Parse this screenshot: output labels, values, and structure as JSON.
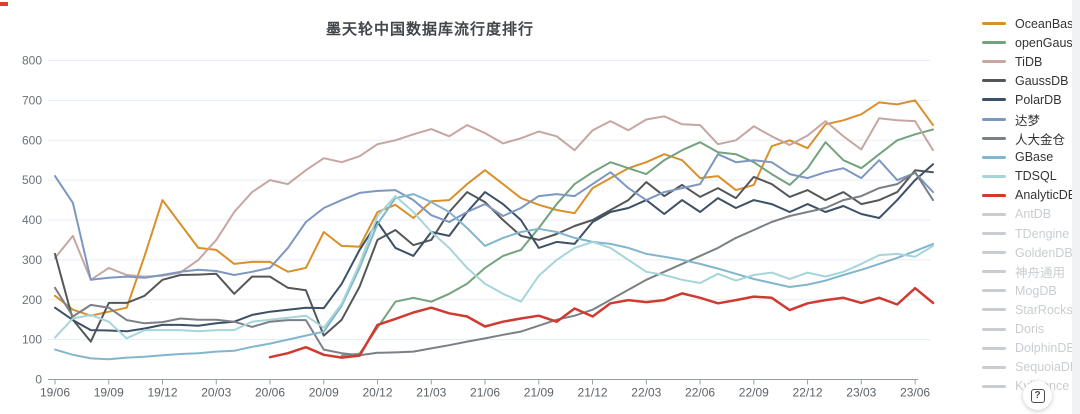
{
  "page": {
    "title": "墨天轮中国数据库流行度排行"
  },
  "help_button": {
    "glyph": "?"
  },
  "legend": {
    "inactive_items": [
      "AntDB",
      "TDengine",
      "GoldenDB",
      "神舟通用",
      "MogDB",
      "StarRocks",
      "Doris",
      "DolphinDB",
      "SequoiaDB",
      "Kyligence"
    ],
    "inactive_color": "#c9cdd2"
  },
  "chart_data": {
    "type": "line",
    "title": "墨天轮中国数据库流行度排行",
    "x_start": "2019-06",
    "x_step_months": 1,
    "x_tick_labels": [
      "19/06",
      "19/09",
      "19/12",
      "20/03",
      "20/06",
      "20/09",
      "20/12",
      "21/03",
      "21/06",
      "21/09",
      "21/12",
      "22/03",
      "22/06",
      "22/09",
      "22/12",
      "23/03",
      "23/06"
    ],
    "months_per_tick": 3,
    "ylim": [
      0,
      800
    ],
    "y_tick_step": 100,
    "grid": true,
    "legend_position": "right",
    "series": [
      {
        "name": "OceanBase",
        "color": "#d9902a",
        "width": 2,
        "values": [
          210,
          175,
          160,
          170,
          180,
          310,
          450,
          390,
          330,
          325,
          290,
          295,
          295,
          270,
          280,
          370,
          335,
          333,
          420,
          438,
          405,
          447,
          450,
          490,
          525,
          490,
          455,
          438,
          425,
          417,
          480,
          505,
          530,
          545,
          565,
          550,
          505,
          510,
          475,
          488,
          585,
          600,
          580,
          640,
          650,
          665,
          695,
          690,
          700,
          638
        ]
      },
      {
        "name": "openGauss",
        "color": "#73a37d",
        "width": 2,
        "values": [
          null,
          null,
          null,
          null,
          null,
          null,
          null,
          null,
          null,
          null,
          null,
          null,
          null,
          null,
          null,
          null,
          60,
          65,
          130,
          195,
          205,
          195,
          215,
          240,
          280,
          310,
          325,
          380,
          440,
          490,
          520,
          545,
          530,
          515,
          550,
          575,
          595,
          570,
          565,
          545,
          515,
          488,
          530,
          595,
          550,
          530,
          565,
          600,
          615,
          627
        ]
      },
      {
        "name": "TiDB",
        "color": "#c7a6a2",
        "width": 2,
        "values": [
          305,
          360,
          250,
          280,
          262,
          258,
          260,
          268,
          300,
          350,
          420,
          470,
          500,
          490,
          525,
          555,
          545,
          560,
          590,
          600,
          615,
          628,
          610,
          638,
          618,
          592,
          605,
          622,
          610,
          575,
          625,
          648,
          625,
          652,
          660,
          640,
          638,
          590,
          600,
          635,
          610,
          588,
          612,
          648,
          610,
          577,
          655,
          650,
          648,
          575
        ]
      },
      {
        "name": "GaussDB",
        "color": "#54575a",
        "width": 2,
        "values": [
          315,
          150,
          95,
          192,
          192,
          210,
          250,
          262,
          263,
          265,
          215,
          258,
          258,
          230,
          224,
          110,
          150,
          233,
          350,
          375,
          337,
          350,
          420,
          470,
          445,
          400,
          360,
          350,
          365,
          385,
          400,
          425,
          450,
          495,
          460,
          488,
          458,
          480,
          455,
          508,
          490,
          458,
          475,
          450,
          470,
          440,
          450,
          470,
          525,
          520
        ]
      },
      {
        "name": "PolarDB",
        "color": "#3c5067",
        "width": 2,
        "values": [
          180,
          149,
          124,
          123,
          121,
          128,
          137,
          137,
          135,
          141,
          145,
          162,
          170,
          175,
          180,
          179,
          240,
          325,
          395,
          330,
          310,
          370,
          360,
          420,
          470,
          440,
          400,
          330,
          345,
          340,
          395,
          420,
          430,
          450,
          415,
          450,
          420,
          455,
          430,
          450,
          440,
          420,
          440,
          420,
          435,
          415,
          405,
          450,
          500,
          540
        ]
      },
      {
        "name": "达梦",
        "color": "#7d97c0",
        "width": 2,
        "values": [
          510,
          443,
          250,
          255,
          258,
          255,
          262,
          270,
          275,
          272,
          262,
          270,
          280,
          330,
          395,
          430,
          450,
          468,
          473,
          475,
          450,
          412,
          395,
          420,
          440,
          410,
          430,
          460,
          465,
          460,
          490,
          520,
          480,
          450,
          470,
          480,
          490,
          565,
          545,
          550,
          545,
          515,
          505,
          520,
          530,
          505,
          550,
          500,
          518,
          470
        ]
      },
      {
        "name": "人大金仓",
        "color": "#7b8087",
        "width": 2,
        "values": [
          230,
          158,
          187,
          180,
          149,
          141,
          144,
          153,
          150,
          150,
          145,
          132,
          145,
          149,
          149,
          75,
          66,
          61,
          67,
          68,
          70,
          78,
          86,
          95,
          103,
          112,
          120,
          135,
          150,
          160,
          175,
          200,
          225,
          250,
          270,
          290,
          310,
          330,
          355,
          375,
          395,
          410,
          420,
          430,
          450,
          460,
          480,
          490,
          520,
          450
        ]
      },
      {
        "name": "GBase",
        "color": "#82b6cd",
        "width": 2,
        "values": [
          75,
          62,
          53,
          51,
          55,
          57,
          61,
          64,
          66,
          70,
          72,
          82,
          90,
          100,
          110,
          120,
          185,
          280,
          390,
          455,
          465,
          445,
          420,
          380,
          335,
          355,
          370,
          378,
          370,
          355,
          345,
          340,
          330,
          315,
          308,
          300,
          290,
          278,
          265,
          252,
          242,
          232,
          238,
          248,
          262,
          275,
          290,
          305,
          322,
          340
        ]
      },
      {
        "name": "TDSQL",
        "color": "#a5d5da",
        "width": 2,
        "values": [
          105,
          153,
          162,
          145,
          103,
          124,
          124,
          124,
          121,
          124,
          124,
          145,
          150,
          155,
          160,
          130,
          190,
          290,
          410,
          460,
          420,
          370,
          330,
          280,
          240,
          215,
          195,
          260,
          300,
          330,
          345,
          330,
          300,
          270,
          262,
          250,
          242,
          265,
          248,
          262,
          268,
          252,
          268,
          258,
          270,
          290,
          312,
          315,
          308,
          335
        ]
      },
      {
        "name": "AnalyticDB",
        "color": "#d03a30",
        "width": 2.5,
        "values": [
          null,
          null,
          null,
          null,
          null,
          null,
          null,
          null,
          null,
          null,
          null,
          null,
          56,
          66,
          81,
          62,
          55,
          60,
          137,
          152,
          168,
          180,
          166,
          158,
          133,
          145,
          153,
          160,
          145,
          178,
          158,
          191,
          199,
          194,
          199,
          216,
          205,
          191,
          199,
          208,
          205,
          174,
          191,
          199,
          205,
          192,
          205,
          188,
          229,
          192
        ]
      }
    ]
  }
}
